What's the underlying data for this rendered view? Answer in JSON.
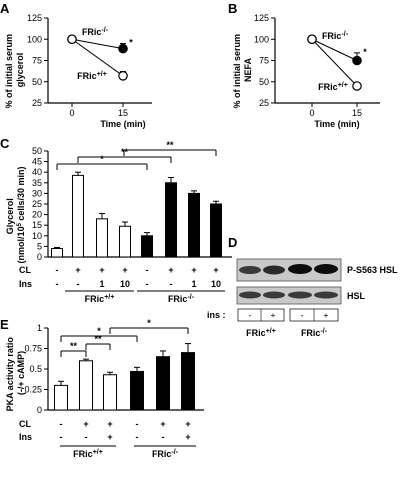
{
  "panels": {
    "A": {
      "label": "A"
    },
    "B": {
      "label": "B"
    },
    "C": {
      "label": "C"
    },
    "D": {
      "label": "D"
    },
    "E": {
      "label": "E"
    }
  },
  "blot": {
    "bands": [
      "P-S563 HSL",
      "HSL"
    ],
    "treatment_label": "ins :",
    "lanes": [
      "-",
      "+",
      "-",
      "+"
    ],
    "groups": [
      "FRic+/+",
      "FRic-/-"
    ]
  },
  "chart_data": [
    {
      "panel": "A",
      "type": "line",
      "ylabel": "% of initial serum glycerol",
      "xlabel": "Time (min)",
      "ylim": [
        25,
        125
      ],
      "yticks": [
        25,
        50,
        75,
        100,
        125
      ],
      "x": [
        0,
        15
      ],
      "series": [
        {
          "name": "FRic-/-",
          "marker": "filled",
          "values": [
            100,
            89
          ],
          "err": [
            null,
            6
          ]
        },
        {
          "name": "FRic+/+",
          "marker": "open",
          "values": [
            100,
            57
          ],
          "err": [
            null,
            5
          ]
        }
      ],
      "annotations": [
        {
          "text": "*",
          "series": 0
        }
      ]
    },
    {
      "panel": "B",
      "type": "line",
      "ylabel": "% of initial serum NEFA",
      "xlabel": "Time (min)",
      "ylim": [
        25,
        125
      ],
      "yticks": [
        25,
        50,
        75,
        100,
        125
      ],
      "x": [
        0,
        15
      ],
      "series": [
        {
          "name": "FRic-/-",
          "marker": "filled",
          "values": [
            100,
            75
          ],
          "err": [
            null,
            9
          ]
        },
        {
          "name": "FRic+/+",
          "marker": "open",
          "values": [
            100,
            45
          ],
          "err": [
            null,
            4
          ]
        }
      ],
      "annotations": [
        {
          "text": "*",
          "series": 0
        }
      ]
    },
    {
      "panel": "C",
      "type": "bar",
      "ylabel": "Glycerol (nmol/10^5 cells/30 min)",
      "ylim": [
        0,
        50
      ],
      "yticks": [
        0,
        5,
        10,
        15,
        20,
        25,
        30,
        35,
        40,
        45,
        50
      ],
      "rows": [
        {
          "label": "CL",
          "values": [
            "-",
            "+",
            "+",
            "+",
            "-",
            "+",
            "+",
            "+"
          ]
        },
        {
          "label": "Ins",
          "values": [
            "-",
            "-",
            "1",
            "10",
            "-",
            "-",
            "1",
            "10"
          ]
        }
      ],
      "groups": [
        "FRic+/+",
        "FRic-/-"
      ],
      "series": [
        {
          "name": "FRic+/+",
          "fill": "#ffffff",
          "values": [
            4,
            38.5,
            18,
            14.5
          ],
          "err": [
            0.5,
            1.5,
            2.5,
            2
          ]
        },
        {
          "name": "FRic-/-",
          "fill": "#000000",
          "values": [
            10,
            35,
            30,
            25
          ],
          "err": [
            1.5,
            2.5,
            1.2,
            1.3
          ]
        }
      ],
      "significance": [
        "*",
        "**",
        "**"
      ]
    },
    {
      "panel": "E",
      "type": "bar",
      "ylabel": "PKA activity ratio (-/+ cAMP)",
      "ylim": [
        0,
        1
      ],
      "yticks": [
        0,
        0.25,
        0.5,
        0.75,
        1
      ],
      "ytick_labels": [
        "0",
        "0.25",
        "0.5",
        "0.75",
        "1"
      ],
      "rows": [
        {
          "label": "CL",
          "values": [
            "-",
            "+",
            "+",
            "-",
            "+",
            "+"
          ]
        },
        {
          "label": "Ins",
          "values": [
            "-",
            "-",
            "+",
            "-",
            "-",
            "+"
          ]
        }
      ],
      "groups": [
        "FRic+/+",
        "FRic-/-"
      ],
      "series": [
        {
          "name": "FRic+/+",
          "fill": "#ffffff",
          "values": [
            0.3,
            0.6,
            0.43
          ],
          "err": [
            0.05,
            0.02,
            0.03
          ]
        },
        {
          "name": "FRic-/-",
          "fill": "#000000",
          "values": [
            0.47,
            0.65,
            0.7
          ],
          "err": [
            0.05,
            0.07,
            0.11
          ]
        }
      ],
      "significance": [
        "**",
        "**",
        "*",
        "*"
      ]
    }
  ]
}
